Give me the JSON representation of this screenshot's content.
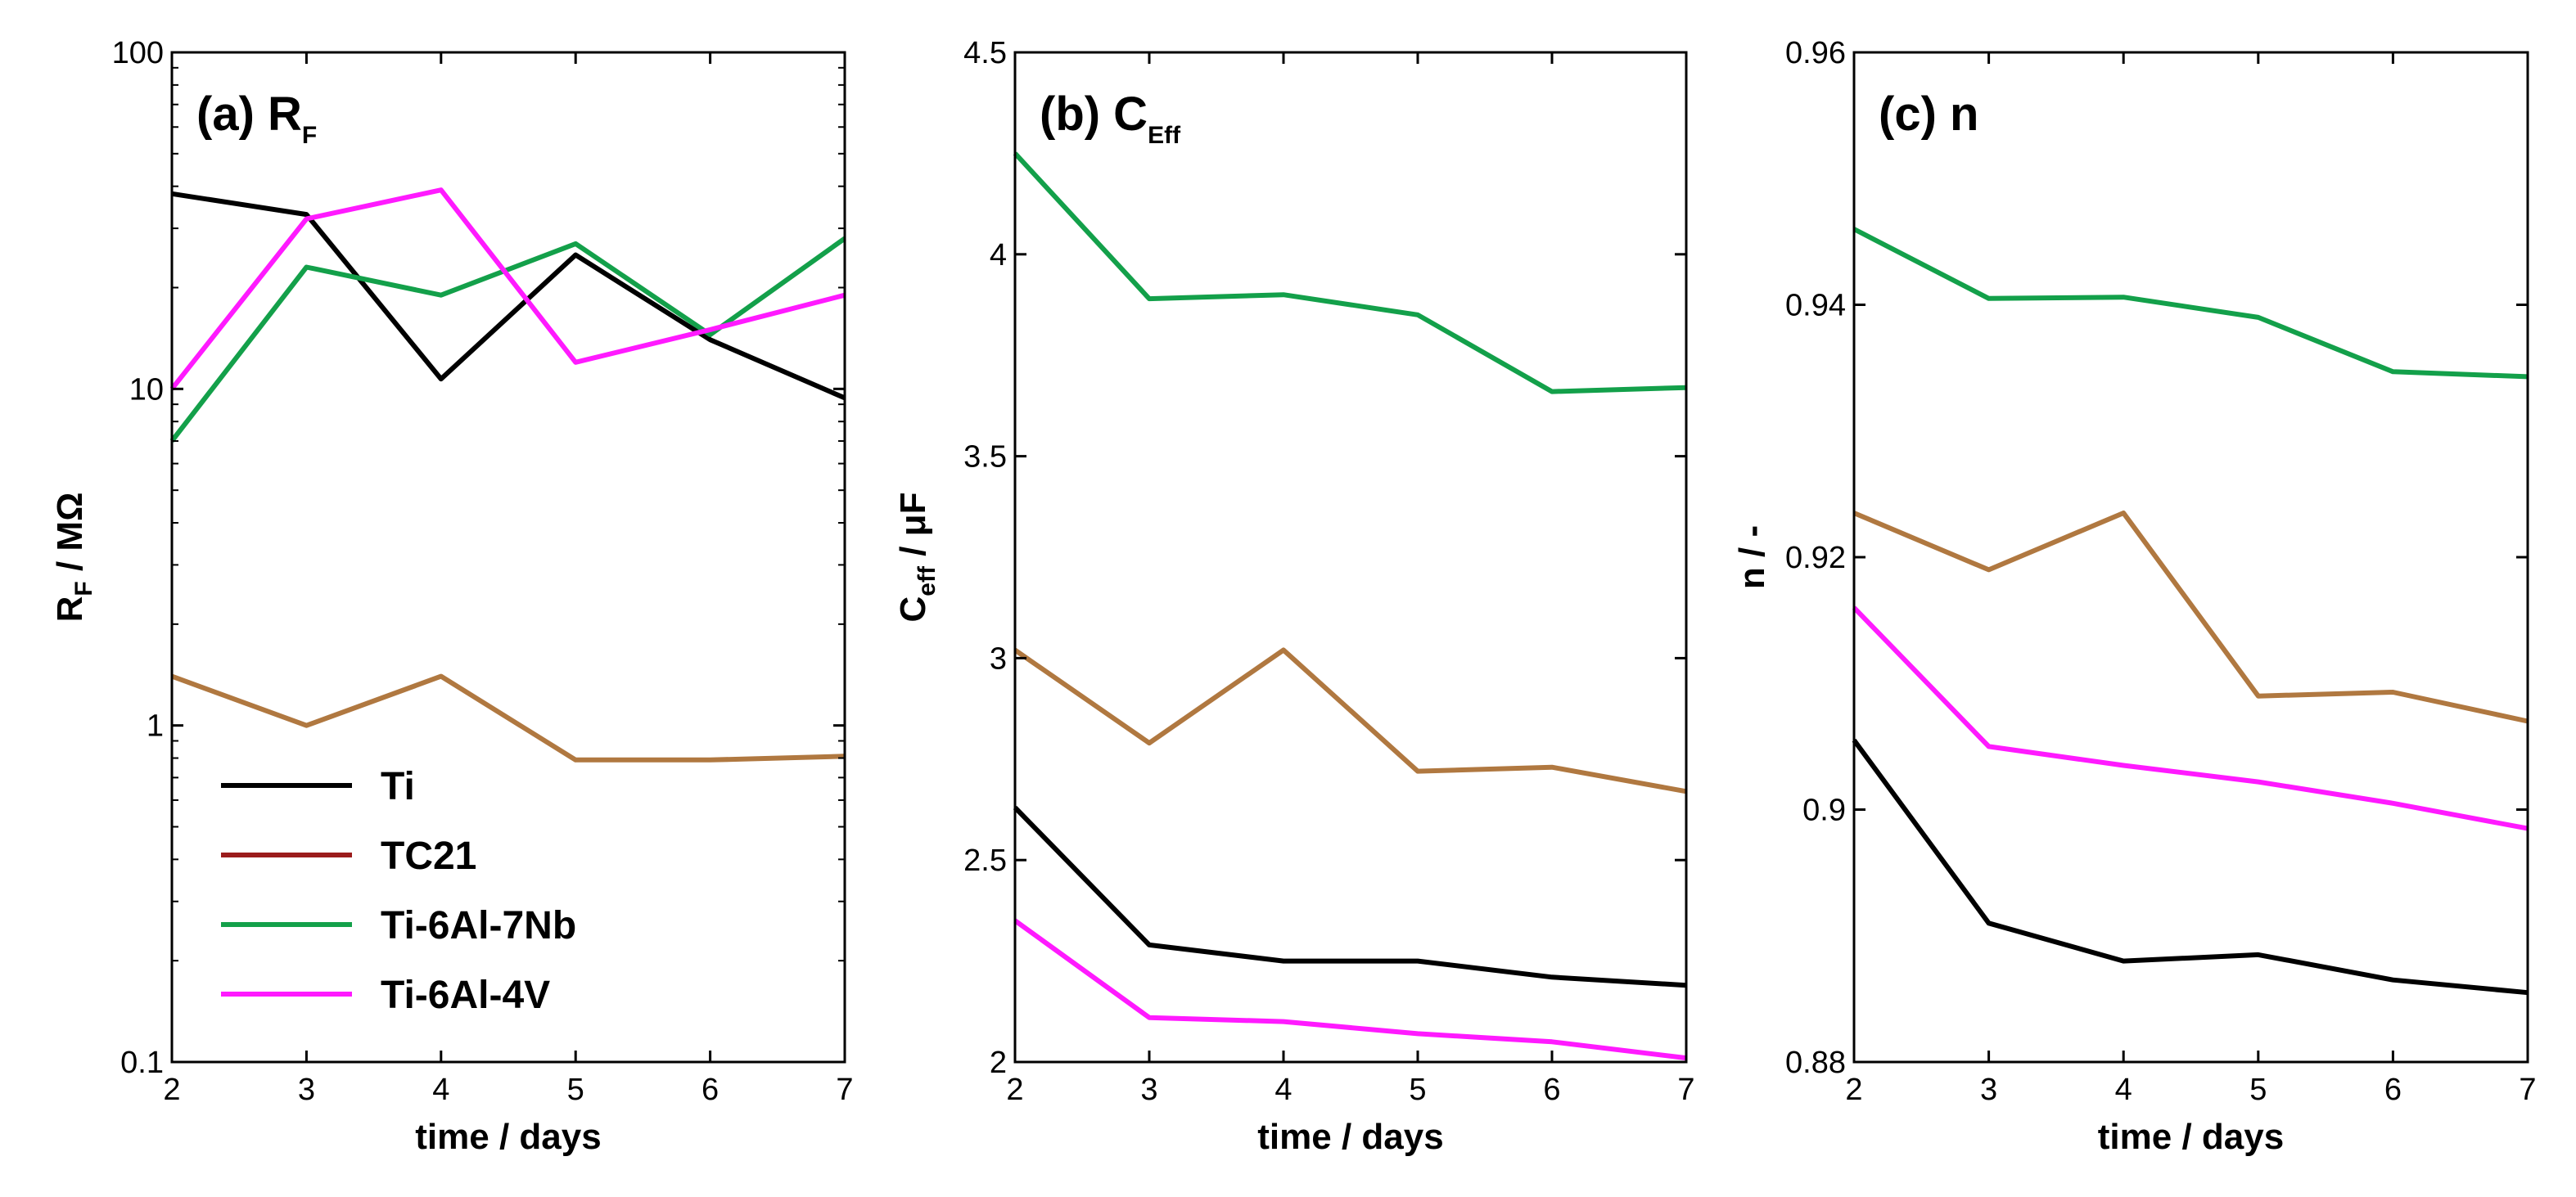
{
  "chart_data": [
    {
      "type": "line",
      "title_main": "(a) R",
      "title_sub": "F",
      "ylabel_main": "R",
      "ylabel_sub": "F",
      "ylabel_rest": " / MΩ",
      "xlabel": "time / days",
      "yscale": "log",
      "xlim": [
        2,
        7
      ],
      "ylim": [
        0.1,
        100
      ],
      "xticks": [
        2,
        3,
        4,
        5,
        6,
        7
      ],
      "yticks": [
        0.1,
        1,
        10,
        100
      ],
      "ytick_labels": [
        "0.1",
        "1",
        "10",
        "100"
      ],
      "x": [
        2,
        3,
        4,
        5,
        6,
        7
      ],
      "series": [
        {
          "name": "Ti",
          "color": "#000000",
          "values": [
            38,
            33,
            10.7,
            25,
            14,
            9.4
          ]
        },
        {
          "name": "TC21",
          "color": "#b07840",
          "values": [
            1.4,
            1.0,
            1.4,
            0.79,
            0.79,
            0.81
          ]
        },
        {
          "name": "Ti-6Al-7Nb",
          "color": "#13a04a",
          "values": [
            7,
            23,
            19,
            27,
            14.5,
            28
          ]
        },
        {
          "name": "Ti-6Al-4V",
          "color": "#ff1aff",
          "values": [
            10,
            32,
            39,
            12,
            15,
            19
          ]
        }
      ],
      "legend": [
        {
          "label": "Ti",
          "color": "#000000"
        },
        {
          "label": "TC21",
          "color": "#9b1c1c"
        },
        {
          "label": "Ti-6Al-7Nb",
          "color": "#13a04a"
        },
        {
          "label": "Ti-6Al-4V",
          "color": "#ff1aff"
        }
      ]
    },
    {
      "type": "line",
      "title_main": "(b) C",
      "title_sub": "Eff",
      "ylabel_main": "C",
      "ylabel_sub": "eff",
      "ylabel_rest": " / μF",
      "xlabel": "time / days",
      "yscale": "linear",
      "xlim": [
        2,
        7
      ],
      "ylim": [
        2,
        4.5
      ],
      "xticks": [
        2,
        3,
        4,
        5,
        6,
        7
      ],
      "yticks": [
        2,
        2.5,
        3,
        3.5,
        4,
        4.5
      ],
      "ytick_labels": [
        "2",
        "2.5",
        "3",
        "3.5",
        "4",
        "4.5"
      ],
      "x": [
        2,
        3,
        4,
        5,
        6,
        7
      ],
      "series": [
        {
          "name": "Ti",
          "color": "#000000",
          "values": [
            2.63,
            2.29,
            2.25,
            2.25,
            2.21,
            2.19
          ]
        },
        {
          "name": "TC21",
          "color": "#b07840",
          "values": [
            3.02,
            2.79,
            3.02,
            2.72,
            2.73,
            2.67
          ]
        },
        {
          "name": "Ti-6Al-7Nb",
          "color": "#13a04a",
          "values": [
            4.25,
            3.89,
            3.9,
            3.85,
            3.66,
            3.67
          ]
        },
        {
          "name": "Ti-6Al-4V",
          "color": "#ff1aff",
          "values": [
            2.35,
            2.11,
            2.1,
            2.07,
            2.05,
            2.01
          ]
        }
      ]
    },
    {
      "type": "line",
      "title_main": "(c) n",
      "title_sub": "",
      "ylabel_main": "n / -",
      "ylabel_sub": "",
      "ylabel_rest": "",
      "xlabel": "time / days",
      "yscale": "linear",
      "xlim": [
        2,
        7
      ],
      "ylim": [
        0.88,
        0.96
      ],
      "xticks": [
        2,
        3,
        4,
        5,
        6,
        7
      ],
      "yticks": [
        0.88,
        0.9,
        0.92,
        0.94,
        0.96
      ],
      "ytick_labels": [
        "0.88",
        "0.9",
        "0.92",
        "0.94",
        "0.96"
      ],
      "x": [
        2,
        3,
        4,
        5,
        6,
        7
      ],
      "series": [
        {
          "name": "Ti",
          "color": "#000000",
          "values": [
            0.9055,
            0.891,
            0.888,
            0.8885,
            0.8865,
            0.8855
          ]
        },
        {
          "name": "TC21",
          "color": "#b07840",
          "values": [
            0.9235,
            0.919,
            0.9235,
            0.909,
            0.9093,
            0.907
          ]
        },
        {
          "name": "Ti-6Al-7Nb",
          "color": "#13a04a",
          "values": [
            0.946,
            0.9405,
            0.9406,
            0.939,
            0.9347,
            0.9343
          ]
        },
        {
          "name": "Ti-6Al-4V",
          "color": "#ff1aff",
          "values": [
            0.916,
            0.905,
            0.9035,
            0.9022,
            0.9005,
            0.8985
          ]
        }
      ]
    }
  ]
}
